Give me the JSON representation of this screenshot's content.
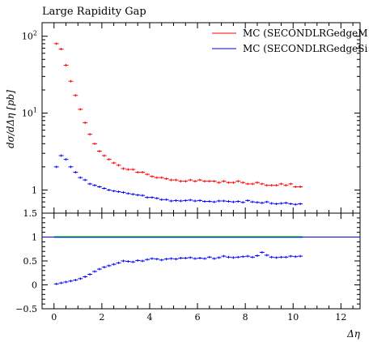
{
  "chart_data": [
    {
      "panel": "main",
      "type": "scatter",
      "title": "Large Rapidity Gap",
      "ylabel": "dσ/dΔη [pb]",
      "xlabel": "",
      "ylog": true,
      "xlim": [
        -0.5,
        12.8
      ],
      "ylim": [
        0.5,
        150
      ],
      "ytick_labels": [
        {
          "value": 100,
          "base": "10",
          "exp": "2"
        },
        {
          "value": 10,
          "base": "10",
          "exp": "1"
        },
        {
          "value": 1,
          "base": "1",
          "exp": ""
        }
      ],
      "legend": "top-right",
      "series": [
        {
          "name": "MC (SECONDLRGedgeM",
          "color": "#ff0000",
          "x": [
            0.1,
            0.3,
            0.5,
            0.7,
            0.9,
            1.1,
            1.3,
            1.5,
            1.7,
            1.9,
            2.1,
            2.3,
            2.5,
            2.7,
            2.9,
            3.1,
            3.3,
            3.5,
            3.7,
            3.9,
            4.1,
            4.3,
            4.5,
            4.7,
            4.9,
            5.1,
            5.3,
            5.5,
            5.7,
            5.9,
            6.1,
            6.3,
            6.5,
            6.7,
            6.9,
            7.1,
            7.3,
            7.5,
            7.7,
            7.9,
            8.1,
            8.3,
            8.5,
            8.7,
            8.9,
            9.1,
            9.3,
            9.5,
            9.7,
            9.9,
            10.1,
            10.3
          ],
          "y": [
            80,
            68,
            42,
            26,
            17,
            11.2,
            7.5,
            5.3,
            4.0,
            3.2,
            2.8,
            2.5,
            2.25,
            2.1,
            1.9,
            1.85,
            1.85,
            1.7,
            1.7,
            1.6,
            1.5,
            1.45,
            1.45,
            1.4,
            1.35,
            1.35,
            1.3,
            1.3,
            1.35,
            1.3,
            1.35,
            1.3,
            1.3,
            1.3,
            1.25,
            1.3,
            1.25,
            1.25,
            1.3,
            1.25,
            1.2,
            1.2,
            1.25,
            1.2,
            1.15,
            1.15,
            1.15,
            1.2,
            1.15,
            1.2,
            1.1,
            1.1
          ]
        },
        {
          "name": "MC (SECONDLRGedgeSi",
          "color": "#0000ff",
          "x": [
            0.1,
            0.3,
            0.5,
            0.7,
            0.9,
            1.1,
            1.3,
            1.5,
            1.7,
            1.9,
            2.1,
            2.3,
            2.5,
            2.7,
            2.9,
            3.1,
            3.3,
            3.5,
            3.7,
            3.9,
            4.1,
            4.3,
            4.5,
            4.7,
            4.9,
            5.1,
            5.3,
            5.5,
            5.7,
            5.9,
            6.1,
            6.3,
            6.5,
            6.7,
            6.9,
            7.1,
            7.3,
            7.5,
            7.7,
            7.9,
            8.1,
            8.3,
            8.5,
            8.7,
            8.9,
            9.1,
            9.3,
            9.5,
            9.7,
            9.9,
            10.1,
            10.3
          ],
          "y": [
            2.0,
            2.8,
            2.5,
            2.0,
            1.7,
            1.45,
            1.35,
            1.2,
            1.15,
            1.1,
            1.05,
            1.0,
            0.97,
            0.95,
            0.93,
            0.9,
            0.88,
            0.86,
            0.85,
            0.8,
            0.8,
            0.78,
            0.75,
            0.75,
            0.72,
            0.73,
            0.72,
            0.73,
            0.74,
            0.72,
            0.73,
            0.71,
            0.71,
            0.7,
            0.72,
            0.72,
            0.71,
            0.7,
            0.71,
            0.69,
            0.73,
            0.7,
            0.69,
            0.68,
            0.7,
            0.67,
            0.66,
            0.67,
            0.68,
            0.66,
            0.65,
            0.66
          ]
        }
      ]
    },
    {
      "panel": "ratio",
      "type": "scatter",
      "xlabel": "Δη",
      "ylabel": "",
      "xlim": [
        -0.5,
        12.8
      ],
      "ylim": [
        -0.5,
        1.5
      ],
      "yticks": [
        -0.5,
        0,
        0.5,
        1,
        1.5
      ],
      "ytick_labels": [
        "−0.5",
        "0",
        "0.5",
        "1",
        "1.5"
      ],
      "xticks": [
        0,
        2,
        4,
        6,
        8,
        10,
        12
      ],
      "xtick_labels": [
        "0",
        "2",
        "4",
        "6",
        "8",
        "10",
        "12"
      ],
      "reference_line": 1,
      "band": {
        "x": [
          0,
          10.4
        ],
        "low": 0.98,
        "high": 1.02,
        "color": "#00dd00"
      },
      "series": [
        {
          "color": "#0000ff",
          "x": [
            0.1,
            0.3,
            0.5,
            0.7,
            0.9,
            1.1,
            1.3,
            1.5,
            1.7,
            1.9,
            2.1,
            2.3,
            2.5,
            2.7,
            2.9,
            3.1,
            3.3,
            3.5,
            3.7,
            3.9,
            4.1,
            4.3,
            4.5,
            4.7,
            4.9,
            5.1,
            5.3,
            5.5,
            5.7,
            5.9,
            6.1,
            6.3,
            6.5,
            6.7,
            6.9,
            7.1,
            7.3,
            7.5,
            7.7,
            7.9,
            8.1,
            8.3,
            8.5,
            8.7,
            8.9,
            9.1,
            9.3,
            9.5,
            9.7,
            9.9,
            10.1,
            10.3
          ],
          "y": [
            0.02,
            0.04,
            0.06,
            0.08,
            0.1,
            0.13,
            0.17,
            0.22,
            0.28,
            0.33,
            0.37,
            0.4,
            0.43,
            0.46,
            0.5,
            0.49,
            0.48,
            0.51,
            0.5,
            0.53,
            0.55,
            0.54,
            0.52,
            0.54,
            0.55,
            0.54,
            0.56,
            0.56,
            0.57,
            0.55,
            0.56,
            0.55,
            0.58,
            0.55,
            0.57,
            0.6,
            0.58,
            0.57,
            0.58,
            0.59,
            0.6,
            0.58,
            0.61,
            0.68,
            0.62,
            0.58,
            0.57,
            0.58,
            0.58,
            0.6,
            0.59,
            0.6
          ]
        }
      ]
    }
  ]
}
